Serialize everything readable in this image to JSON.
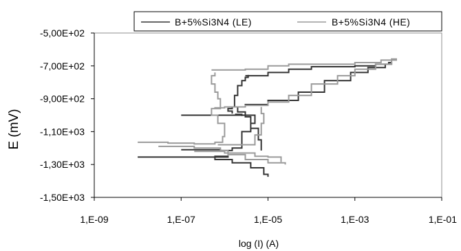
{
  "chart_data": {
    "type": "line",
    "title": "",
    "xlabel": "log (I) (A)",
    "ylabel": "E (mV)",
    "x_scale": "log",
    "xlim": [
      1e-09,
      0.1
    ],
    "ylim": [
      -1500,
      -500
    ],
    "x_tick_labels": [
      "1,E-09",
      "1,E-07",
      "1,E-05",
      "1,E-03",
      "1,E-01"
    ],
    "y_tick_labels": [
      "-5,00E+02",
      "-7,00E+02",
      "-9,00E+02",
      "-1,10E+03",
      "-1,30E+03",
      "-1,50E+03"
    ],
    "grid": false,
    "legend_position": "top",
    "series": [
      {
        "name": "B+5%Si3N4 (LE)",
        "color": "#333333",
        "points": [
          [
            1e-08,
            -1255
          ],
          [
            1.5e-07,
            -1255
          ],
          [
            1.2e-06,
            -1250
          ],
          [
            6e-07,
            -1270
          ],
          [
            1.5e-06,
            -1290
          ],
          [
            4e-06,
            -1320
          ],
          [
            8e-06,
            -1360
          ],
          [
            1e-05,
            -1375
          ],
          null,
          [
            1e-07,
            -1210
          ],
          [
            8e-07,
            -1215
          ],
          [
            1.5e-06,
            -1200
          ],
          [
            2.5e-06,
            -1100
          ],
          [
            4e-06,
            -1050
          ],
          [
            5e-06,
            -1000
          ],
          [
            3e-06,
            -980
          ],
          [
            2e-06,
            -950
          ],
          [
            1.7e-06,
            -880
          ],
          [
            2e-06,
            -820
          ],
          [
            2.5e-06,
            -790
          ],
          [
            3e-06,
            -770
          ],
          [
            3.5e-06,
            -755
          ],
          null,
          [
            1.5e-06,
            -1000
          ],
          [
            3e-06,
            -1010
          ],
          [
            4e-06,
            -1080
          ],
          [
            6e-06,
            -1150
          ],
          [
            7e-06,
            -1215
          ],
          null,
          [
            1e-07,
            -1000
          ],
          [
            8e-07,
            -1000
          ],
          [
            1.8e-06,
            -995
          ],
          [
            2.5e-06,
            -1005
          ],
          null,
          [
            3e-06,
            -760
          ],
          [
            1e-05,
            -740
          ],
          [
            3e-05,
            -720
          ],
          [
            0.0001,
            -705
          ],
          [
            0.001,
            -700
          ],
          [
            0.003,
            -690
          ],
          [
            0.006,
            -680
          ],
          [
            0.007,
            -690
          ],
          [
            0.005,
            -710
          ],
          [
            0.002,
            -740
          ],
          [
            0.0008,
            -790
          ],
          [
            0.0002,
            -860
          ],
          [
            5e-05,
            -910
          ],
          [
            1e-05,
            -935
          ],
          [
            3e-06,
            -950
          ],
          [
            1.5e-06,
            -960
          ],
          [
            1.2e-06,
            -975
          ],
          [
            1.5e-06,
            -990
          ]
        ]
      },
      {
        "name": "B+5%Si3N4 (HE)",
        "color": "#9a9a9a",
        "points": [
          [
            1e-08,
            -1165
          ],
          [
            5e-08,
            -1170
          ],
          [
            2e-07,
            -1175
          ],
          [
            6e-07,
            -1165
          ],
          [
            9e-07,
            -1130
          ],
          [
            1e-06,
            -1050
          ],
          [
            7e-07,
            -1000
          ],
          [
            5e-07,
            -960
          ],
          [
            8e-07,
            -900
          ],
          [
            7e-07,
            -860
          ],
          [
            6e-07,
            -810
          ],
          [
            5e-07,
            -760
          ],
          [
            6e-07,
            -740
          ],
          null,
          [
            5e-07,
            -725
          ],
          [
            3e-06,
            -720
          ],
          [
            1e-05,
            -700
          ],
          [
            3e-05,
            -690
          ],
          [
            0.0003,
            -690
          ],
          [
            0.001,
            -680
          ],
          [
            0.004,
            -665
          ],
          [
            0.007,
            -658
          ],
          [
            0.009,
            -665
          ],
          [
            0.007,
            -690
          ],
          [
            0.003,
            -720
          ],
          [
            0.001,
            -760
          ],
          [
            0.0004,
            -810
          ],
          [
            0.0001,
            -880
          ],
          [
            3e-05,
            -920
          ],
          [
            1e-05,
            -940
          ],
          [
            3e-06,
            -950
          ],
          [
            1e-06,
            -955
          ],
          [
            6e-07,
            -960
          ],
          null,
          [
            3e-08,
            -1190
          ],
          [
            2e-07,
            -1200
          ],
          [
            8e-07,
            -1215
          ],
          [
            1.2e-06,
            -1240
          ],
          [
            3e-06,
            -1270
          ],
          [
            1e-05,
            -1290
          ],
          [
            2.5e-05,
            -1300
          ],
          null,
          [
            2e-07,
            -1220
          ],
          [
            1e-06,
            -1230
          ],
          [
            5e-06,
            -1250
          ],
          [
            1e-05,
            -1255
          ],
          [
            2e-05,
            -1285
          ],
          null,
          [
            7e-07,
            -1180
          ],
          [
            2e-06,
            -1180
          ],
          [
            5e-06,
            -1120
          ],
          [
            7e-06,
            -1050
          ],
          [
            8e-06,
            -990
          ],
          [
            7e-06,
            -950
          ]
        ]
      }
    ]
  }
}
